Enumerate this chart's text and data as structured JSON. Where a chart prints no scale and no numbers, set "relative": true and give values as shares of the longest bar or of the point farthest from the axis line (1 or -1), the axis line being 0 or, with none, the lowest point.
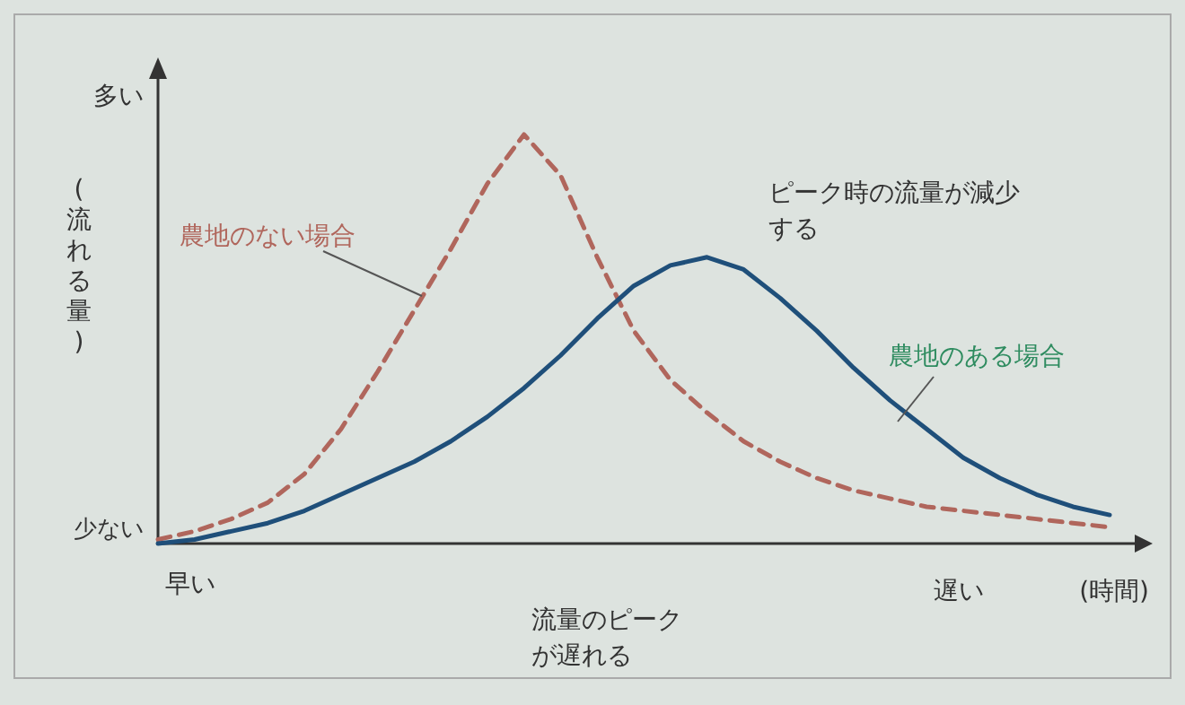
{
  "chart_data": {
    "type": "line",
    "relative": true,
    "ylabel": "(流れる量)",
    "xlabel": "(時間)",
    "categories": [
      null,
      null,
      null,
      null,
      null,
      null,
      null,
      null,
      null,
      null,
      null,
      null,
      null,
      null,
      null,
      null,
      null,
      null,
      null,
      null,
      null,
      null,
      null,
      null,
      null,
      null,
      null
    ],
    "series": [
      {
        "name": "農地のない場合",
        "color": "#b0665c",
        "line_style": "dashed",
        "values": [
          0.01,
          0.03,
          0.06,
          0.1,
          0.17,
          0.28,
          0.42,
          0.57,
          0.72,
          0.88,
          1.0,
          0.9,
          0.7,
          0.52,
          0.4,
          0.32,
          0.25,
          0.2,
          0.16,
          0.13,
          0.11,
          0.09,
          0.08,
          0.07,
          0.06,
          0.05,
          0.04
        ]
      },
      {
        "name": "農地のある場合",
        "color": "#1f4f7a",
        "line_style": "solid",
        "values": [
          0.0,
          0.01,
          0.03,
          0.05,
          0.08,
          0.12,
          0.16,
          0.2,
          0.25,
          0.31,
          0.38,
          0.46,
          0.55,
          0.63,
          0.68,
          0.7,
          0.67,
          0.6,
          0.52,
          0.43,
          0.35,
          0.28,
          0.21,
          0.16,
          0.12,
          0.09,
          0.07
        ]
      }
    ],
    "annotations": [
      "多い",
      "少ない",
      "早い",
      "遅い",
      "ピーク時の流量が減少する",
      "流量のピークが遅れる"
    ]
  }
}
